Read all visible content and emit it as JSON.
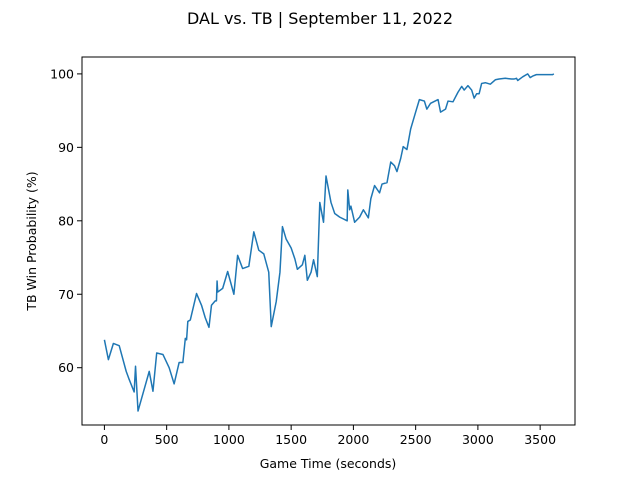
{
  "chart_data": {
    "type": "line",
    "title": "DAL vs. TB | September 11, 2022",
    "x_label": "Game Time (seconds)",
    "y_label": "TB Win Probability (%)",
    "xlim": [
      -180,
      3780
    ],
    "ylim": [
      52.2,
      102.3
    ],
    "xticks": [
      0,
      500,
      1000,
      1500,
      2000,
      2500,
      3000,
      3500
    ],
    "yticks": [
      60,
      70,
      80,
      90,
      100
    ],
    "grid": false,
    "series": [
      {
        "name": "TB Win Probability",
        "color": "#1f77b4",
        "x": [
          0,
          32,
          72,
          119,
          143,
          175,
          199,
          239,
          250,
          270,
          360,
          390,
          420,
          470,
          520,
          560,
          600,
          630,
          650,
          660,
          670,
          690,
          740,
          780,
          810,
          840,
          860,
          890,
          900,
          905,
          910,
          950,
          990,
          1040,
          1070,
          1110,
          1160,
          1200,
          1240,
          1280,
          1320,
          1340,
          1380,
          1410,
          1430,
          1460,
          1500,
          1530,
          1550,
          1590,
          1610,
          1630,
          1660,
          1680,
          1710,
          1730,
          1760,
          1780,
          1820,
          1850,
          1890,
          1950,
          1955,
          1970,
          1980,
          2010,
          2050,
          2080,
          2120,
          2140,
          2170,
          2210,
          2230,
          2270,
          2300,
          2330,
          2350,
          2380,
          2400,
          2430,
          2460,
          2500,
          2530,
          2570,
          2590,
          2620,
          2680,
          2700,
          2740,
          2760,
          2800,
          2840,
          2870,
          2890,
          2920,
          2950,
          2970,
          2990,
          3010,
          3030,
          3060,
          3100,
          3140,
          3170,
          3220,
          3270,
          3290,
          3310,
          3320,
          3360,
          3400,
          3420,
          3440,
          3470,
          3600,
          3610
        ],
        "values": [
          63.8,
          61.1,
          63.3,
          63.0,
          61.5,
          59.5,
          58.4,
          56.7,
          60.2,
          54.1,
          59.5,
          56.8,
          62.0,
          61.8,
          60.0,
          57.8,
          60.7,
          60.7,
          64.0,
          63.8,
          66.3,
          66.5,
          70.1,
          68.5,
          66.8,
          65.5,
          68.5,
          69.1,
          69.1,
          71.8,
          70.3,
          70.8,
          73.1,
          70.0,
          75.3,
          73.5,
          73.8,
          78.5,
          76.0,
          75.5,
          73.0,
          65.6,
          69.0,
          73.0,
          79.2,
          77.5,
          76.3,
          74.8,
          73.4,
          74.0,
          75.3,
          71.9,
          73.0,
          74.7,
          72.4,
          82.5,
          79.8,
          86.1,
          82.5,
          81.0,
          80.5,
          80.0,
          84.2,
          81.5,
          82.0,
          79.8,
          80.5,
          81.5,
          80.4,
          83.0,
          84.8,
          83.8,
          85.0,
          85.2,
          88.0,
          87.5,
          86.7,
          88.5,
          90.1,
          89.7,
          92.5,
          94.8,
          96.5,
          96.3,
          95.2,
          96.0,
          96.5,
          94.8,
          95.2,
          96.3,
          96.2,
          97.5,
          98.3,
          97.8,
          98.4,
          97.8,
          96.7,
          97.3,
          97.3,
          98.7,
          98.8,
          98.6,
          99.2,
          99.3,
          99.4,
          99.3,
          99.3,
          99.4,
          99.1,
          99.6,
          100.0,
          99.5,
          99.7,
          99.9,
          99.9,
          100.0
        ]
      }
    ]
  }
}
